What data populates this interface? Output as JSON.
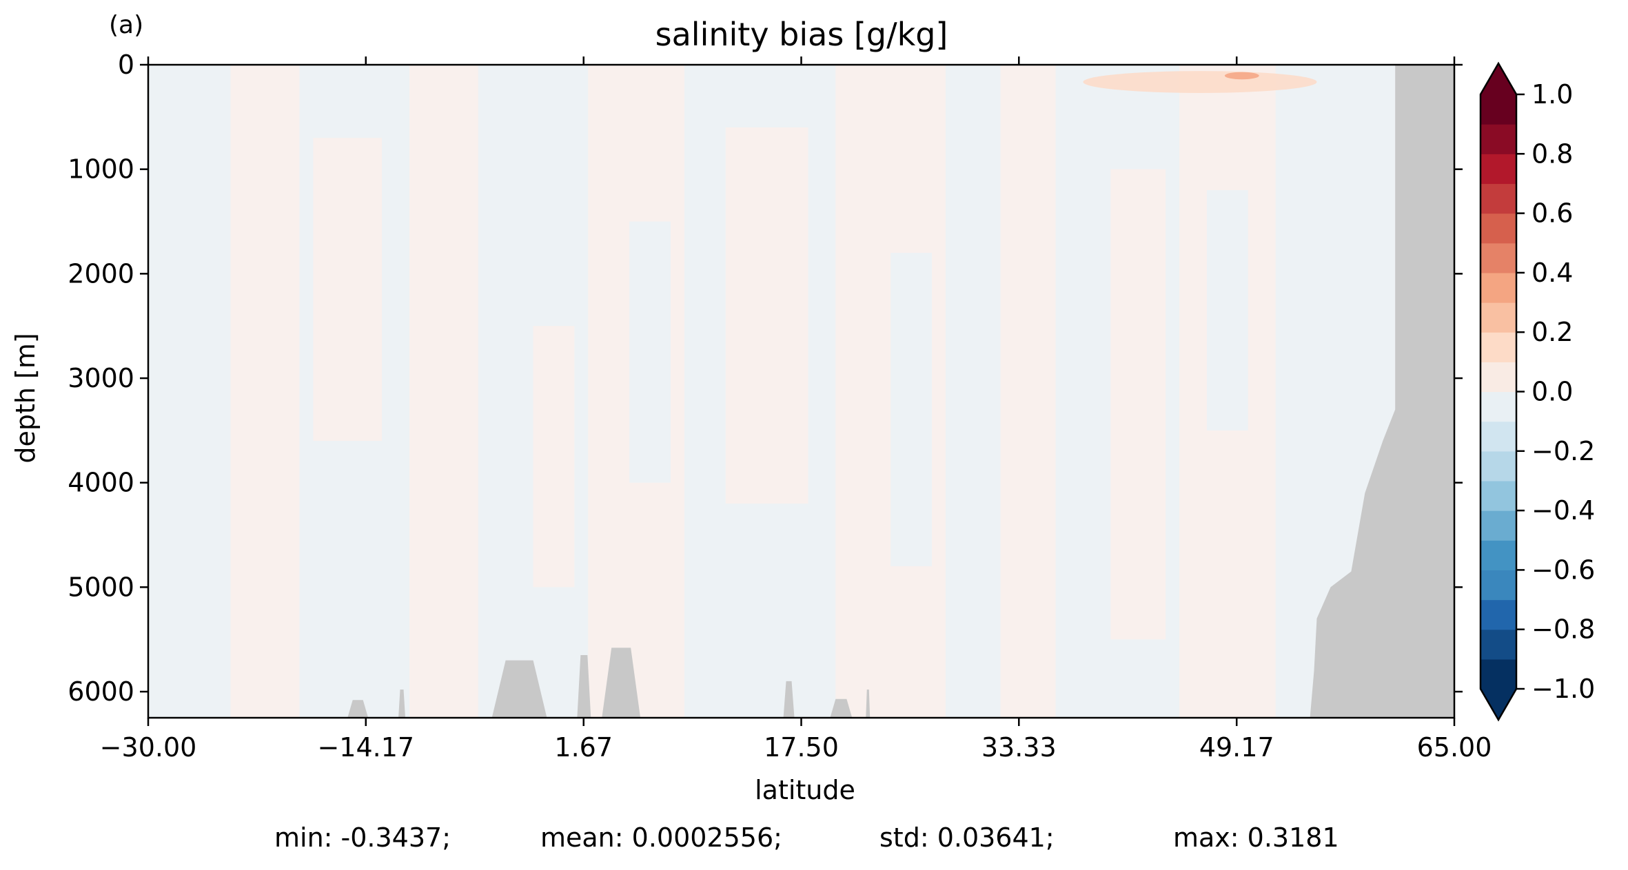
{
  "panel_label": "(a)",
  "chart_data": {
    "type": "heatmap",
    "title": "salinity bias [g/kg]",
    "xlabel": "latitude",
    "ylabel": "depth [m]",
    "xlim": [
      -30.0,
      65.0
    ],
    "ylim": [
      6250,
      0
    ],
    "x_ticks": [
      -30.0,
      -14.17,
      1.67,
      17.5,
      33.33,
      49.17,
      65.0
    ],
    "x_tick_labels": [
      "−30.00",
      "−14.17",
      "1.67",
      "17.50",
      "33.33",
      "49.17",
      "65.00"
    ],
    "y_ticks": [
      0,
      1000,
      2000,
      3000,
      4000,
      5000,
      6000
    ],
    "y_tick_labels": [
      "0",
      "1000",
      "2000",
      "3000",
      "4000",
      "5000",
      "6000"
    ],
    "colorbar": {
      "range": [
        -1.0,
        1.0
      ],
      "levels": 20,
      "extend": "both",
      "ticks": [
        1.0,
        0.8,
        0.6,
        0.4,
        0.2,
        0.0,
        -0.2,
        -0.4,
        -0.6,
        -0.8,
        -1.0
      ],
      "tick_labels": [
        "1.0",
        "0.8",
        "0.6",
        "0.4",
        "0.2",
        "0.0",
        "−0.2",
        "−0.4",
        "−0.6",
        "−0.8",
        "−1.0"
      ],
      "colormap": "RdBu_r",
      "colors": [
        "#053061",
        "#134c87",
        "#2166ac",
        "#3a87bd",
        "#4393c3",
        "#6aacd0",
        "#92c5de",
        "#b6d7e8",
        "#d1e5f0",
        "#e9f0f4",
        "#f9ebe4",
        "#fddbc7",
        "#f9c0a2",
        "#f4a582",
        "#e58267",
        "#d6604d",
        "#c33c3c",
        "#b2182b",
        "#8a0b25",
        "#67001f"
      ]
    },
    "field_colors": {
      "positive": "#f9f0ed",
      "negative": "#edf2f5",
      "land": "#c8c8c8"
    },
    "bias_bands": [
      {
        "x": [
          -30.0,
          -24.0
        ],
        "sign": "negative"
      },
      {
        "x": [
          -24.0,
          -19.0
        ],
        "sign": "positive"
      },
      {
        "x": [
          -19.0,
          -11.0
        ],
        "sign": "negative"
      },
      {
        "x": [
          -11.0,
          -6.0
        ],
        "sign": "positive"
      },
      {
        "x": [
          -6.0,
          2.0
        ],
        "sign": "negative"
      },
      {
        "x": [
          2.0,
          9.0
        ],
        "sign": "positive"
      },
      {
        "x": [
          9.0,
          20.0
        ],
        "sign": "negative"
      },
      {
        "x": [
          20.0,
          28.0
        ],
        "sign": "positive"
      },
      {
        "x": [
          28.0,
          32.0
        ],
        "sign": "negative"
      },
      {
        "x": [
          32.0,
          36.0
        ],
        "sign": "positive"
      },
      {
        "x": [
          36.0,
          45.0
        ],
        "sign": "negative"
      },
      {
        "x": [
          45.0,
          52.0
        ],
        "sign": "positive"
      },
      {
        "x": [
          52.0,
          61.0
        ],
        "sign": "negative"
      }
    ],
    "bias_patches": [
      {
        "x": [
          -18.0,
          -13.0
        ],
        "depth": [
          700,
          3600
        ],
        "sign": "positive"
      },
      {
        "x": [
          12.0,
          18.0
        ],
        "depth": [
          600,
          4200
        ],
        "sign": "positive"
      },
      {
        "x": [
          40.0,
          44.0
        ],
        "depth": [
          1000,
          5500
        ],
        "sign": "positive"
      },
      {
        "x": [
          -2.0,
          1.0
        ],
        "depth": [
          2500,
          5000
        ],
        "sign": "positive"
      },
      {
        "x": [
          24.0,
          27.0
        ],
        "depth": [
          1800,
          4800
        ],
        "sign": "negative"
      },
      {
        "x": [
          5.0,
          8.0
        ],
        "depth": [
          1500,
          4000
        ],
        "sign": "negative"
      },
      {
        "x": [
          47.0,
          50.0
        ],
        "depth": [
          1200,
          3500
        ],
        "sign": "negative"
      }
    ],
    "surface_anomalies": [
      {
        "x": [
          48.3,
          50.8
        ],
        "depth": [
          70,
          140
        ],
        "value": 0.3181
      },
      {
        "x": [
          38.0,
          55.0
        ],
        "depth": [
          60,
          270
        ],
        "value": 0.12
      }
    ],
    "land_mask": [
      [
        65.0,
        0
      ],
      [
        60.7,
        0
      ],
      [
        60.7,
        3300
      ],
      [
        59.8,
        3600
      ],
      [
        58.5,
        4100
      ],
      [
        57.5,
        4850
      ],
      [
        56.0,
        5000
      ],
      [
        55.0,
        5300
      ],
      [
        54.8,
        5800
      ],
      [
        54.5,
        6250
      ],
      [
        65.0,
        6250
      ]
    ],
    "seafloor_bumps": [
      {
        "x": [
          -15.5,
          -14.0
        ],
        "top": 6080
      },
      {
        "x": [
          -11.8,
          -11.3
        ],
        "top": 5980
      },
      {
        "x": [
          -5.0,
          -1.0
        ],
        "top": 5700
      },
      {
        "x": [
          1.2,
          2.2
        ],
        "top": 5650
      },
      {
        "x": [
          3.0,
          5.8
        ],
        "top": 5580
      },
      {
        "x": [
          16.2,
          17.0
        ],
        "top": 5900
      },
      {
        "x": [
          19.6,
          21.2
        ],
        "top": 6070
      },
      {
        "x": [
          22.2,
          22.5
        ],
        "top": 5980
      }
    ]
  },
  "stats": {
    "min": "min: -0.3437;",
    "mean": "mean: 0.0002556;",
    "std": "std: 0.03641;",
    "max": "max: 0.3181"
  }
}
